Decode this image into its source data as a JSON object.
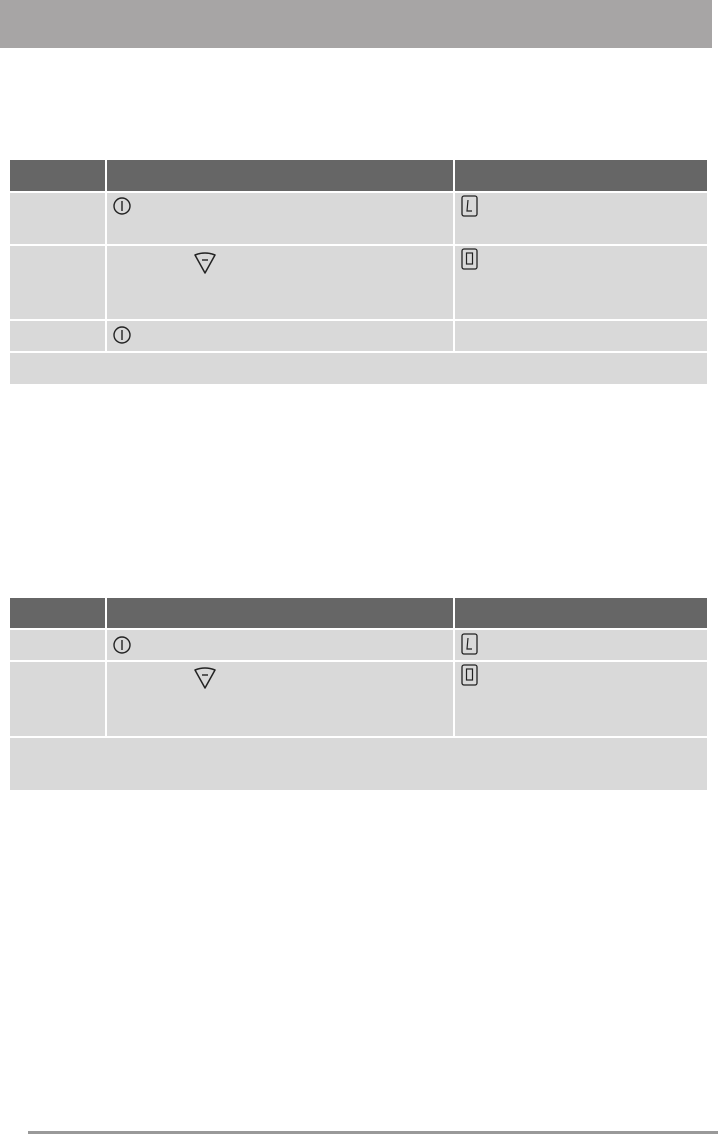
{
  "icons": {
    "power": "power-on-off-icon",
    "minus": "minus-triangle-icon",
    "display_L": "display-L-icon",
    "display_0": "display-0-icon"
  },
  "colors": {
    "header_bar": "#a7a5a5",
    "table_header": "#666666",
    "table_cell": "#d9d9d9"
  }
}
